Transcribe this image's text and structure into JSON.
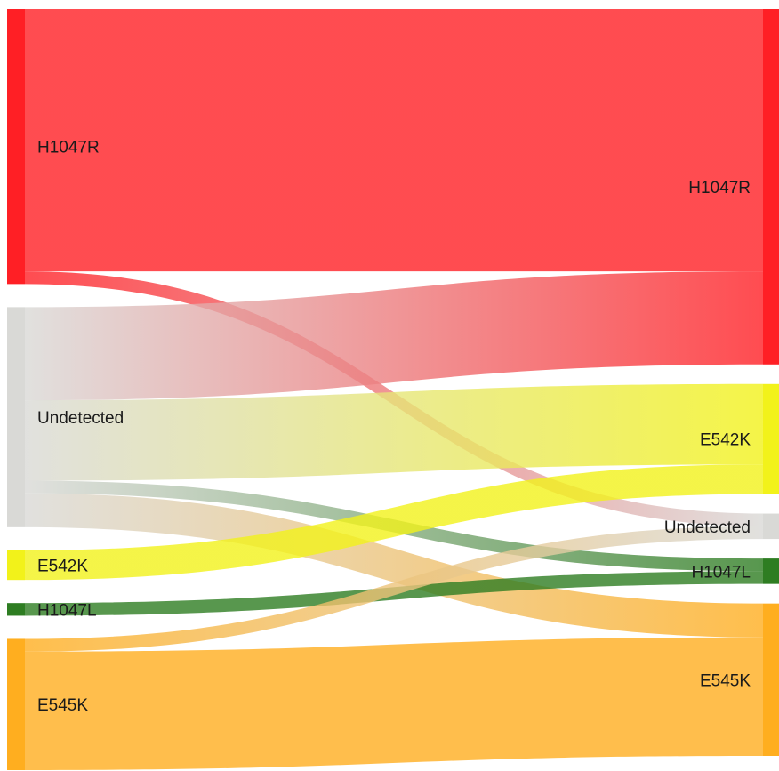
{
  "chart_data": {
    "type": "sankey",
    "nodes": {
      "left": [
        {
          "id": "L_H1047R",
          "name": "H1047R",
          "value": 65,
          "color": "#ff1f25"
        },
        {
          "id": "L_Undetected",
          "name": "Undetected",
          "value": 52,
          "color": "#d9d9d6"
        },
        {
          "id": "L_E542K",
          "name": "E542K",
          "value": 7,
          "color": "#f2f21a"
        },
        {
          "id": "L_H1047L",
          "name": "H1047L",
          "value": 3,
          "color": "#2e7d22"
        },
        {
          "id": "L_E545K",
          "name": "E545K",
          "value": 31,
          "color": "#ffae1f"
        }
      ],
      "right": [
        {
          "id": "R_H1047R",
          "name": "H1047R",
          "value": 84,
          "color": "#ff1f25"
        },
        {
          "id": "R_E542K",
          "name": "E542K",
          "value": 26,
          "color": "#f2f21a"
        },
        {
          "id": "R_Undetected",
          "name": "Undetected",
          "value": 6,
          "color": "#d9d9d6"
        },
        {
          "id": "R_H1047L",
          "name": "H1047L",
          "value": 6,
          "color": "#2e7d22"
        },
        {
          "id": "R_E545K",
          "name": "E545K",
          "value": 36,
          "color": "#ffae1f"
        }
      ]
    },
    "links": [
      {
        "source": "L_H1047R",
        "target": "R_H1047R",
        "value": 62
      },
      {
        "source": "L_H1047R",
        "target": "R_Undetected",
        "value": 3
      },
      {
        "source": "L_Undetected",
        "target": "R_H1047R",
        "value": 22
      },
      {
        "source": "L_Undetected",
        "target": "R_E542K",
        "value": 19
      },
      {
        "source": "L_Undetected",
        "target": "R_H1047L",
        "value": 3
      },
      {
        "source": "L_Undetected",
        "target": "R_E545K",
        "value": 8
      },
      {
        "source": "L_E542K",
        "target": "R_E542K",
        "value": 7
      },
      {
        "source": "L_H1047L",
        "target": "R_H1047L",
        "value": 3
      },
      {
        "source": "L_E545K",
        "target": "R_Undetected",
        "value": 3
      },
      {
        "source": "L_E545K",
        "target": "R_E545K",
        "value": 28
      }
    ]
  }
}
